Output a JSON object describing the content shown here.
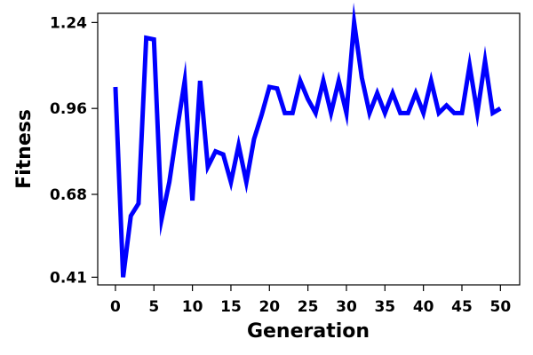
{
  "chart_data": {
    "type": "line",
    "title": "",
    "xlabel": "Generation",
    "ylabel": "Fitness",
    "xlim": [
      -2.3,
      52.5
    ],
    "ylim": [
      0.385,
      1.27
    ],
    "xticks": [
      0,
      5,
      10,
      15,
      20,
      25,
      30,
      35,
      40,
      45,
      50
    ],
    "yticks": [
      0.41,
      0.68,
      0.96,
      1.24
    ],
    "ytick_labels": [
      "0.41",
      "0.68",
      "0.96",
      "1.24"
    ],
    "grid": false,
    "legend": "none",
    "series": [
      {
        "color": "#0000ff",
        "x": [
          0,
          1,
          2,
          3,
          4,
          5,
          6,
          7,
          8,
          9,
          10,
          11,
          12,
          13,
          14,
          15,
          16,
          17,
          18,
          19,
          20,
          21,
          22,
          23,
          24,
          25,
          26,
          27,
          28,
          29,
          30,
          31,
          32,
          33,
          34,
          35,
          36,
          37,
          38,
          39,
          40,
          41,
          42,
          43,
          44,
          45,
          46,
          47,
          48,
          49,
          50
        ],
        "y": [
          1.03,
          0.41,
          0.61,
          0.65,
          1.19,
          1.185,
          0.6,
          0.72,
          0.89,
          1.05,
          0.66,
          1.05,
          0.77,
          0.82,
          0.81,
          0.72,
          0.84,
          0.72,
          0.86,
          0.94,
          1.03,
          1.025,
          0.945,
          0.945,
          1.05,
          0.99,
          0.945,
          1.05,
          0.945,
          1.05,
          0.945,
          1.24,
          1.06,
          0.945,
          1.01,
          0.945,
          1.01,
          0.945,
          0.945,
          1.01,
          0.945,
          1.05,
          0.945,
          0.97,
          0.945,
          0.945,
          1.1,
          0.945,
          1.115,
          0.945,
          0.96
        ]
      }
    ]
  }
}
